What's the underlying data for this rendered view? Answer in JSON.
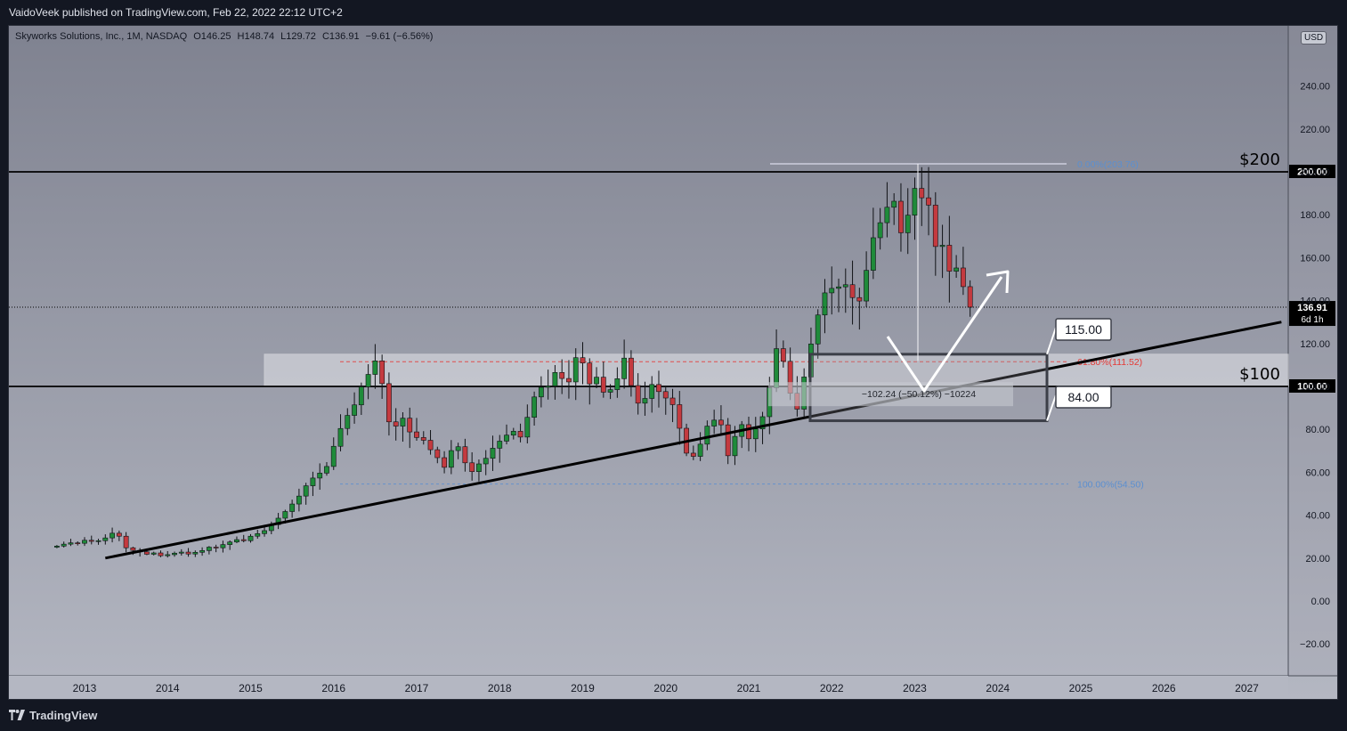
{
  "header": {
    "publish_line": "VaidoVeek published on TradingView.com, Feb 22, 2022 22:12 UTC+2"
  },
  "legend": {
    "symbol": "Skyworks Solutions, Inc., 1M, NASDAQ",
    "open": "O146.25",
    "high": "H148.74",
    "low": "L129.72",
    "close": "C136.91",
    "change": "−9.61 (−6.56%)"
  },
  "currency_badge": "USD",
  "footer": {
    "brand": "TradingView"
  },
  "colors": {
    "up": "#26a69a",
    "up_dark": "#1e7d2e",
    "down": "#c9333a",
    "fib_blue": "#5b8fd0",
    "fib_red": "#e53935"
  },
  "chart_data": {
    "type": "candlestick",
    "symbol": "SWKS",
    "interval": "1M",
    "ylim": [
      -30,
      250
    ],
    "y_ticks": [
      -20,
      0,
      20,
      40,
      60,
      80,
      100,
      120,
      140,
      160,
      180,
      200,
      220,
      240
    ],
    "x_ticks": [
      "2013",
      "2014",
      "2015",
      "2016",
      "2017",
      "2018",
      "2019",
      "2020",
      "2021",
      "2022",
      "2023",
      "2024",
      "2025",
      "2026",
      "2027"
    ],
    "last_price": {
      "value": "136.91",
      "countdown": "6d 1h"
    },
    "levels": [
      {
        "value": 200,
        "label": "$200",
        "axis_label": "200.00"
      },
      {
        "value": 100,
        "label": "$100",
        "axis_label": "100.00"
      }
    ],
    "zone": {
      "top": 115,
      "bottom": 84,
      "top_label": "115.00",
      "bottom_label": "84.00"
    },
    "fib": [
      {
        "label": "0.00%(203.76)",
        "value": 203.76
      },
      {
        "label": "61.80%(111.52)",
        "value": 111.52
      },
      {
        "label": "100.00%(54.50)",
        "value": 54.5
      }
    ],
    "measure_label": "−102.24 (−50.12%) −10224",
    "trendline": {
      "from": [
        "2013-04",
        20
      ],
      "to": [
        "2027-06",
        130
      ]
    },
    "monthly_close": [
      25.6,
      26.5,
      27.1,
      26.9,
      28.3,
      27.8,
      28.1,
      29.4,
      31.6,
      30.2,
      24.8,
      23.6,
      22.9,
      21.8,
      22.4,
      21.1,
      21.6,
      22.3,
      22.8,
      21.9,
      22.7,
      23.5,
      25.1,
      24.8,
      26.3,
      27.5,
      28.6,
      28.1,
      30.2,
      31.4,
      32.8,
      35.6,
      38.6,
      41.7,
      45.2,
      48.9,
      53.7,
      57.3,
      59.6,
      62.7,
      72.1,
      80.4,
      86.5,
      91.4,
      99.8,
      105.6,
      111.9,
      101.3,
      83.5,
      81.5,
      85.2,
      78.8,
      76.2,
      74.9,
      70.5,
      66.8,
      62.3,
      70.1,
      71.9,
      64.4,
      60.3,
      63.9,
      66.5,
      71.2,
      74.5,
      77.3,
      79.1,
      76.4,
      85.6,
      95.1,
      99.6,
      100.2,
      106.5,
      103.7,
      102.1,
      113.4,
      110.9,
      101.2,
      104.3,
      97.3,
      98.5,
      103.6,
      113.2,
      100.4,
      92.2,
      94.4,
      100.9,
      97.6,
      94.6,
      91.5,
      80.5,
      68.9,
      67.4,
      73.1,
      81.5,
      84.3,
      82.1,
      67.7,
      76.7,
      82.2,
      75.6,
      80.2,
      85.9,
      99.4,
      117.6,
      111.7,
      96.8,
      89.4,
      104.4,
      119.8,
      133.3,
      143.6,
      145.7,
      146.4,
      147.4,
      141.4,
      139.8,
      154.1,
      169.3,
      176.3,
      183.5,
      186.3,
      171.6,
      179.8,
      192.3,
      187.9,
      184.5,
      165.2,
      165.8,
      153.7,
      155.2,
      146.5,
      136.91
    ]
  }
}
